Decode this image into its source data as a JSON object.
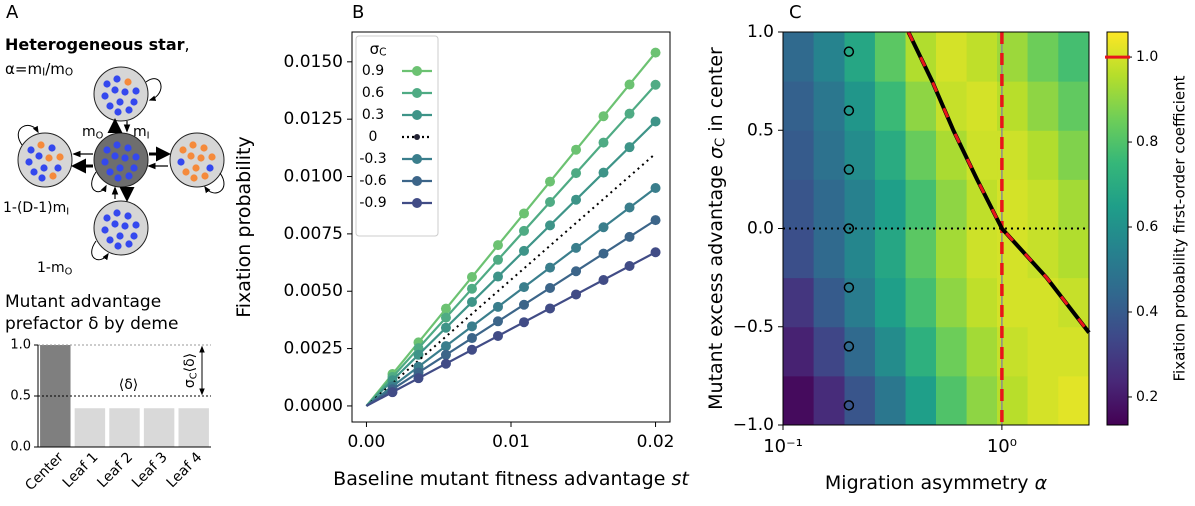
{
  "diagram": {
    "panel_label": "A",
    "title": [
      {
        "text": "Heterogeneous star",
        "bold": true
      },
      {
        "text": ","
      }
    ],
    "ratio": [
      {
        "text": "α=m"
      },
      {
        "text": "I",
        "sub": true
      },
      {
        "text": "/m"
      },
      {
        "text": "O",
        "sub": true
      }
    ],
    "out_label": [
      {
        "text": "m"
      },
      {
        "text": "O",
        "sub": true
      }
    ],
    "in_label": [
      {
        "text": "m"
      },
      {
        "text": "I",
        "sub": true
      }
    ],
    "stay_center": [
      {
        "text": "1-(D-1)m"
      },
      {
        "text": "I",
        "sub": true
      }
    ],
    "stay_leaf": [
      {
        "text": "1-m"
      },
      {
        "text": "O",
        "sub": true
      }
    ]
  },
  "chart_data": [
    {
      "type": "bar",
      "title": [
        "Mutant advantage",
        "prefactor δ by deme"
      ],
      "categories": [
        "Center",
        "Leaf 1",
        "Leaf 2",
        "Leaf 3",
        "Leaf 4"
      ],
      "values": [
        1,
        0.38,
        0.38,
        0.38,
        0.38
      ],
      "colors": [
        "#7f7f7f",
        "#d9d9d9",
        "#d9d9d9",
        "#d9d9d9",
        "#d9d9d9"
      ],
      "ylim": [
        0,
        1
      ],
      "yticks": [
        {
          "value": 0,
          "label": "0.0"
        },
        0.5,
        {
          "value": 1,
          "label": "1.0"
        }
      ],
      "hlines": [
        {
          "value": 1,
          "color": "#999999",
          "style": "dotted"
        },
        {
          "value": 0.5,
          "color": "#000000",
          "style": "dotted"
        }
      ],
      "annotations": {
        "mean": "⟨δ⟩",
        "spread": [
          {
            "text": "σ"
          },
          {
            "text": "C",
            "sub": true
          },
          {
            "text": "⟨δ⟩"
          }
        ]
      }
    },
    {
      "type": "line",
      "panel_label": "B",
      "xlabel": [
        {
          "text": "Baseline mutant fitness advantage "
        },
        {
          "text": "st",
          "it": true
        }
      ],
      "ylabel": [
        {
          "text": "Fixation probability"
        }
      ],
      "x": [
        0.0018,
        0.0036,
        0.0055,
        0.0073,
        0.0091,
        0.0109,
        0.0127,
        0.0145,
        0.0164,
        0.0182,
        0.02
      ],
      "line_x": [
        0,
        0.02
      ],
      "series": [
        {
          "name": "0.9",
          "color": "#6cc272",
          "values": [
            0.00139,
            0.00277,
            0.00424,
            0.00562,
            0.00701,
            0.00839,
            0.00978,
            0.01117,
            0.01263,
            0.01401,
            0.0154
          ],
          "line_values": [
            0,
            0.0154
          ]
        },
        {
          "name": "0.6",
          "color": "#4fab84",
          "values": [
            0.00126,
            0.00252,
            0.00385,
            0.00511,
            0.00637,
            0.00763,
            0.00889,
            0.01015,
            0.01148,
            0.01274,
            0.014
          ],
          "line_values": [
            0,
            0.014
          ]
        },
        {
          "name": "0.3",
          "color": "#3e9488",
          "values": [
            0.00112,
            0.00223,
            0.00341,
            0.00453,
            0.00564,
            0.00676,
            0.00787,
            0.00899,
            0.01017,
            0.01128,
            0.0124
          ],
          "line_values": [
            0,
            0.0124
          ]
        },
        {
          "name": "0",
          "color": "#000000",
          "dash": "dotted",
          "line_values": [
            0,
            0.011
          ]
        },
        {
          "name": "-0.3",
          "color": "#3a7e8c",
          "values": [
            0.00086,
            0.00171,
            0.00261,
            0.00347,
            0.00432,
            0.00518,
            0.00603,
            0.00689,
            0.00779,
            0.00865,
            0.0095
          ],
          "line_values": [
            0,
            0.0095
          ]
        },
        {
          "name": "-0.6",
          "color": "#3c6589",
          "values": [
            0.00073,
            0.00146,
            0.00223,
            0.00296,
            0.00369,
            0.00441,
            0.00514,
            0.00587,
            0.00664,
            0.00737,
            0.0081
          ],
          "line_values": [
            0,
            0.0081
          ]
        },
        {
          "name": "-0.9",
          "color": "#414c86",
          "values": [
            0.0006,
            0.00121,
            0.00184,
            0.00245,
            0.00305,
            0.00365,
            0.00425,
            0.00486,
            0.00549,
            0.0061,
            0.0067
          ],
          "line_values": [
            0,
            0.0067
          ]
        }
      ],
      "legend_title": [
        {
          "text": "σ"
        },
        {
          "text": "C",
          "sub": true
        }
      ],
      "legend": "upper left",
      "xlim": [
        -0.001,
        0.021
      ],
      "ylim": [
        -0.0007,
        0.0163
      ],
      "xticks": [
        {
          "value": 0,
          "label": "0.00"
        },
        0.01,
        0.02
      ],
      "yticks": [
        {
          "value": 0,
          "label": "0.0000"
        },
        0.0025,
        {
          "value": 0.005,
          "label": "0.0050"
        },
        0.0075,
        {
          "value": 0.01,
          "label": "0.0100"
        },
        0.0125,
        {
          "value": 0.015,
          "label": "0.0150"
        }
      ]
    },
    {
      "type": "heatmap",
      "panel_label": "C",
      "xlabel": [
        {
          "text": "Migration asymmetry "
        },
        {
          "text": "α",
          "it": true
        }
      ],
      "ylabel": [
        {
          "text": "Mutant excess advantage "
        },
        {
          "text": "σ",
          "it": true
        },
        {
          "text": "C",
          "sub": true
        },
        {
          "text": " in center"
        }
      ],
      "xscale": "log",
      "xlim": [
        0.1,
        2.5
      ],
      "ylim": [
        -1,
        1
      ],
      "xticks": [
        {
          "value": 0.1,
          "label": "10⁻¹"
        },
        {
          "value": 1,
          "label": "10⁰"
        }
      ],
      "yticks": [
        {
          "value": -1,
          "label": "−1.0"
        },
        {
          "value": -0.5,
          "label": "−0.5"
        },
        {
          "value": 0,
          "label": "0.0"
        },
        0.5,
        {
          "value": 1,
          "label": "1.0"
        }
      ],
      "x_edges": [
        0.1,
        0.138,
        0.191,
        0.263,
        0.363,
        0.5,
        0.69,
        0.95,
        1.31,
        1.81,
        2.5
      ],
      "y_edges": [
        -1,
        -0.75,
        -0.5,
        -0.25,
        0,
        0.25,
        0.5,
        0.75,
        1
      ],
      "z": [
        [
          0.16,
          0.25,
          0.38,
          0.5,
          0.65,
          0.8,
          0.9,
          0.96,
          1.0,
          1.02
        ],
        [
          0.22,
          0.33,
          0.45,
          0.58,
          0.72,
          0.85,
          0.93,
          0.98,
          1.0,
          1.0
        ],
        [
          0.28,
          0.4,
          0.52,
          0.65,
          0.78,
          0.9,
          0.97,
          1.0,
          1.0,
          0.98
        ],
        [
          0.36,
          0.45,
          0.56,
          0.68,
          0.82,
          0.93,
          0.99,
          1.0,
          0.98,
          0.95
        ],
        [
          0.38,
          0.45,
          0.54,
          0.65,
          0.78,
          0.9,
          0.97,
          1.0,
          0.98,
          0.93
        ],
        [
          0.4,
          0.48,
          0.58,
          0.7,
          0.84,
          0.94,
          0.99,
          0.99,
          0.95,
          0.88
        ],
        [
          0.42,
          0.5,
          0.62,
          0.76,
          0.9,
          0.98,
          1.0,
          0.96,
          0.9,
          0.83
        ],
        [
          0.45,
          0.55,
          0.68,
          0.82,
          0.95,
          1.0,
          0.97,
          0.92,
          0.85,
          0.78
        ]
      ],
      "colormap": [
        "#440154",
        "#482878",
        "#3e4989",
        "#31688e",
        "#26828e",
        "#1f9e89",
        "#35b779",
        "#6ece58",
        "#b5de2b",
        "#fde725"
      ],
      "zlim": [
        0.134,
        1.059
      ],
      "colorbar": {
        "label": "Fixation probability first-order coefficient",
        "ticks": [
          0.2,
          0.4,
          0.6,
          0.8,
          {
            "value": 1,
            "label": "1.0"
          }
        ],
        "marker": 1,
        "marker_color": "#e8141b"
      },
      "optimum": {
        "x": [
          0.374,
          0.48,
          0.6,
          0.77,
          1.0,
          1.6,
          2.5
        ],
        "y": [
          1,
          0.75,
          0.5,
          0.25,
          0,
          -0.25,
          -0.53
        ],
        "color": "#000000",
        "dash_color": "#e8141b"
      },
      "vline": {
        "value": 1,
        "color": "#e8141b",
        "base_color": "#8c8c8c"
      },
      "hline": {
        "value": 0,
        "color": "#000000"
      },
      "points": {
        "x": [
          0.2,
          0.2,
          0.2,
          0.2,
          0.2,
          0.2,
          0.2
        ],
        "y": [
          0.9,
          0.6,
          0.3,
          0,
          -0.3,
          -0.6,
          -0.9
        ]
      }
    }
  ]
}
